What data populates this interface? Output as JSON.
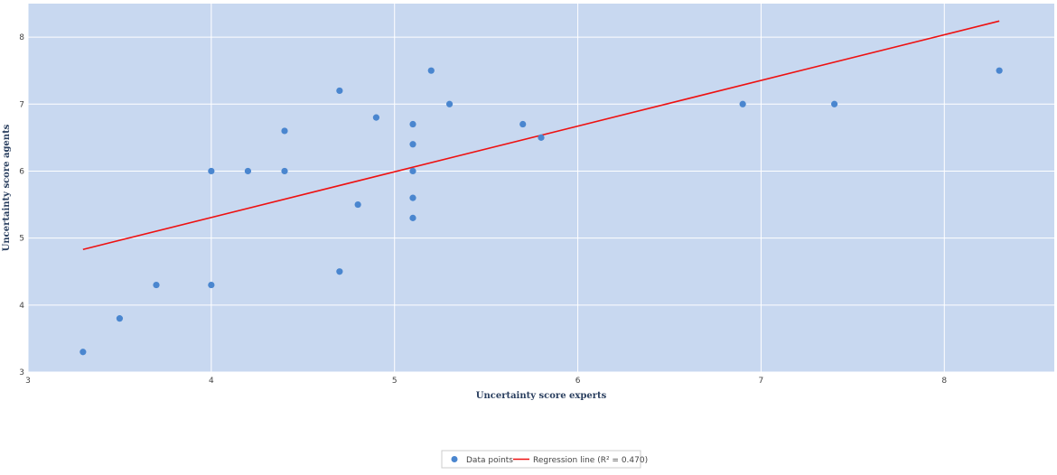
{
  "chart_data": {
    "type": "scatter",
    "xlabel": "Uncertainty score experts",
    "ylabel": "Uncertainty score agents",
    "xlim": [
      3,
      8.6
    ],
    "ylim": [
      3,
      8.5
    ],
    "xticks": [
      3,
      4,
      5,
      6,
      7,
      8
    ],
    "yticks": [
      3,
      4,
      5,
      6,
      7,
      8
    ],
    "grid": true,
    "legend_position": "bottom-center",
    "colors": {
      "plot_background": "#c8d8f0",
      "grid": "#ffffff",
      "points": "#4a86cf",
      "regression": "#ee1111"
    },
    "series": [
      {
        "name": "Data points",
        "x": [
          3.3,
          3.5,
          3.7,
          4.0,
          4.0,
          4.2,
          4.4,
          4.4,
          4.7,
          4.7,
          4.8,
          4.9,
          5.1,
          5.1,
          5.1,
          5.1,
          5.1,
          5.2,
          5.3,
          5.7,
          5.8,
          6.9,
          7.4,
          8.3
        ],
        "y": [
          3.3,
          3.8,
          4.3,
          4.3,
          6.0,
          6.0,
          6.0,
          6.6,
          4.5,
          7.2,
          5.5,
          6.8,
          6.7,
          6.4,
          6.0,
          5.6,
          5.3,
          7.5,
          7.0,
          6.7,
          6.5,
          7.0,
          7.0,
          7.5
        ]
      },
      {
        "name": "Regression line (R² = 0.470)",
        "x": [
          3.3,
          8.3
        ],
        "y": [
          4.83,
          8.24
        ]
      }
    ]
  }
}
